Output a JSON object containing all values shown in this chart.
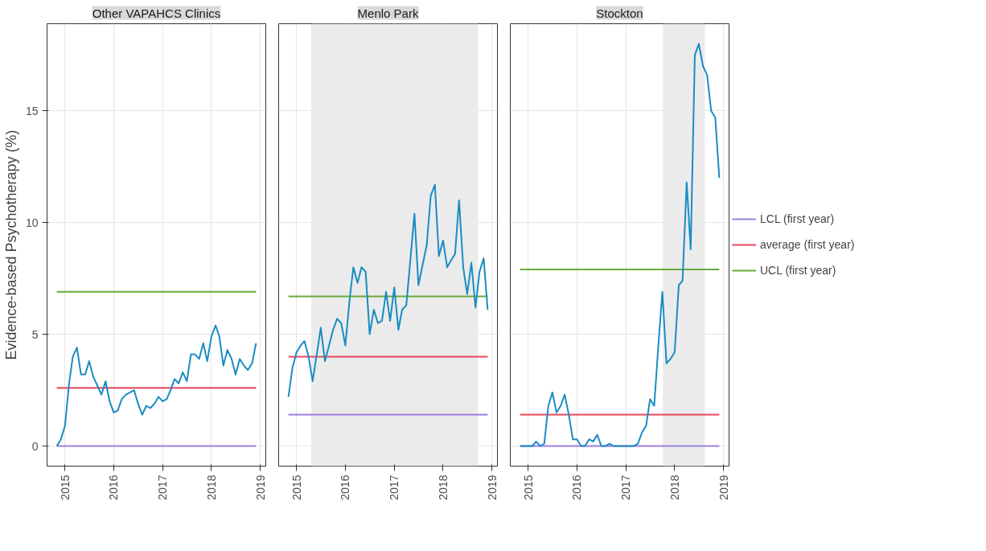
{
  "chart_data": [
    {
      "type": "line",
      "title": "Other VAPAHCS Clinics",
      "ylabel": "Evidence-based Psychotherapy (%)",
      "xlim": [
        "2014-08-20",
        "2019-02-12"
      ],
      "ylim": [
        -0.9,
        18.9
      ],
      "xticks": [
        {
          "value": "2015-01-01",
          "label": "2015"
        },
        {
          "value": "2016-01-01",
          "label": "2016"
        },
        {
          "value": "2017-01-01",
          "label": "2017"
        },
        {
          "value": "2018-01-01",
          "label": "2018"
        },
        {
          "value": "2019-01-01",
          "label": "2019"
        }
      ],
      "yticks": [
        0,
        5,
        10,
        15
      ],
      "grid": true,
      "x": [
        "2014-11",
        "2014-12",
        "2015-01",
        "2015-02",
        "2015-03",
        "2015-04",
        "2015-05",
        "2015-06",
        "2015-07",
        "2015-08",
        "2015-09",
        "2015-10",
        "2015-11",
        "2015-12",
        "2016-01",
        "2016-02",
        "2016-03",
        "2016-04",
        "2016-05",
        "2016-06",
        "2016-07",
        "2016-08",
        "2016-09",
        "2016-10",
        "2016-11",
        "2016-12",
        "2017-01",
        "2017-02",
        "2017-03",
        "2017-04",
        "2017-05",
        "2017-06",
        "2017-07",
        "2017-08",
        "2017-09",
        "2017-10",
        "2017-11",
        "2017-12",
        "2018-01",
        "2018-02",
        "2018-03",
        "2018-04",
        "2018-05",
        "2018-06",
        "2018-07",
        "2018-08",
        "2018-09",
        "2018-10",
        "2018-11",
        "2018-12"
      ],
      "series": [
        {
          "color": "#1a8cc2",
          "values": [
            0,
            0.3,
            0.9,
            2.8,
            4.0,
            4.4,
            3.2,
            3.2,
            3.8,
            3.1,
            2.7,
            2.3,
            2.9,
            2.0,
            1.5,
            1.6,
            2.1,
            2.3,
            2.4,
            2.5,
            1.9,
            1.4,
            1.8,
            1.7,
            1.9,
            2.2,
            2.0,
            2.1,
            2.5,
            3.0,
            2.8,
            3.3,
            2.9,
            4.1,
            4.1,
            3.9,
            4.6,
            3.8,
            4.9,
            5.4,
            4.9,
            3.6,
            4.3,
            3.9,
            3.2,
            3.9,
            3.6,
            3.4,
            3.7,
            4.6
          ]
        },
        {
          "type": "line",
          "color": "#9b7fe0",
          "x": [
            "2014-11",
            "2018-12"
          ],
          "values": [
            0,
            0
          ]
        },
        {
          "type": "line",
          "color": "#e8475a",
          "x": [
            "2014-11",
            "2018-12"
          ],
          "values": [
            2.6,
            2.6
          ]
        },
        {
          "type": "line",
          "color": "#6aaa3a",
          "x": [
            "2014-11",
            "2018-12"
          ],
          "values": [
            6.9,
            6.9
          ]
        }
      ]
    },
    {
      "type": "line",
      "title": "Menlo Park",
      "xlim": [
        "2014-08-20",
        "2019-02-12"
      ],
      "ylim": [
        -0.9,
        18.9
      ],
      "xticks": [
        {
          "value": "2015-01-01",
          "label": "2015"
        },
        {
          "value": "2016-01-01",
          "label": "2016"
        },
        {
          "value": "2017-01-01",
          "label": "2017"
        },
        {
          "value": "2018-01-01",
          "label": "2018"
        },
        {
          "value": "2019-01-01",
          "label": "2019"
        }
      ],
      "yticks": [
        0,
        5,
        10,
        15
      ],
      "grid": true,
      "tick_labels": "x",
      "bands": [
        {
          "axis": "x",
          "from": "2015-04-20",
          "to": "2018-09-20",
          "color": "#ebebeb"
        }
      ],
      "x": [
        "2014-11",
        "2014-12",
        "2015-01",
        "2015-02",
        "2015-03",
        "2015-04",
        "2015-05",
        "2015-06",
        "2015-07",
        "2015-08",
        "2015-09",
        "2015-10",
        "2015-11",
        "2015-12",
        "2016-01",
        "2016-02",
        "2016-03",
        "2016-04",
        "2016-05",
        "2016-06",
        "2016-07",
        "2016-08",
        "2016-09",
        "2016-10",
        "2016-11",
        "2016-12",
        "2017-01",
        "2017-02",
        "2017-03",
        "2017-04",
        "2017-05",
        "2017-06",
        "2017-07",
        "2017-08",
        "2017-09",
        "2017-10",
        "2017-11",
        "2017-12",
        "2018-01",
        "2018-02",
        "2018-03",
        "2018-04",
        "2018-05",
        "2018-06",
        "2018-07",
        "2018-08",
        "2018-09",
        "2018-10",
        "2018-11",
        "2018-12"
      ],
      "series": [
        {
          "color": "#1a8cc2",
          "values": [
            2.2,
            3.5,
            4.2,
            4.5,
            4.7,
            4.0,
            2.9,
            4.1,
            5.3,
            3.8,
            4.5,
            5.2,
            5.7,
            5.5,
            4.5,
            6.5,
            8.0,
            7.3,
            8.0,
            7.8,
            5.0,
            6.1,
            5.5,
            5.6,
            6.9,
            5.6,
            7.1,
            5.2,
            6.1,
            6.3,
            8.3,
            10.4,
            7.2,
            8.1,
            9.0,
            11.2,
            11.7,
            8.5,
            9.2,
            8.0,
            8.3,
            8.6,
            11.0,
            8.0,
            6.8,
            8.2,
            6.2,
            7.8,
            8.4,
            6.1
          ]
        },
        {
          "type": "line",
          "color": "#9b7fe0",
          "x": [
            "2014-11",
            "2018-12"
          ],
          "values": [
            1.4,
            1.4
          ]
        },
        {
          "type": "line",
          "color": "#e8475a",
          "x": [
            "2014-11",
            "2018-12"
          ],
          "values": [
            4.0,
            4.0
          ]
        },
        {
          "type": "line",
          "color": "#6aaa3a",
          "x": [
            "2014-11",
            "2018-12"
          ],
          "values": [
            6.7,
            6.7
          ]
        }
      ]
    },
    {
      "type": "line",
      "title": "Stockton",
      "xlim": [
        "2014-08-20",
        "2019-02-12"
      ],
      "ylim": [
        -0.9,
        18.9
      ],
      "xticks": [
        {
          "value": "2015-01-01",
          "label": "2015"
        },
        {
          "value": "2016-01-01",
          "label": "2016"
        },
        {
          "value": "2017-01-01",
          "label": "2017"
        },
        {
          "value": "2018-01-01",
          "label": "2018"
        },
        {
          "value": "2019-01-01",
          "label": "2019"
        }
      ],
      "yticks": [
        0,
        5,
        10,
        15
      ],
      "grid": true,
      "tick_labels": "x",
      "legend": "right",
      "bands": [
        {
          "axis": "x",
          "from": "2017-10-05",
          "to": "2018-08-15",
          "color": "#ebebeb"
        }
      ],
      "x": [
        "2014-11",
        "2014-12",
        "2015-01",
        "2015-02",
        "2015-03",
        "2015-04",
        "2015-05",
        "2015-06",
        "2015-07",
        "2015-08",
        "2015-09",
        "2015-10",
        "2015-11",
        "2015-12",
        "2016-01",
        "2016-02",
        "2016-03",
        "2016-04",
        "2016-05",
        "2016-06",
        "2016-07",
        "2016-08",
        "2016-09",
        "2016-10",
        "2016-11",
        "2016-12",
        "2017-01",
        "2017-02",
        "2017-03",
        "2017-04",
        "2017-05",
        "2017-06",
        "2017-07",
        "2017-08",
        "2017-09",
        "2017-10",
        "2017-11",
        "2017-12",
        "2018-01",
        "2018-02",
        "2018-03",
        "2018-04",
        "2018-05",
        "2018-06",
        "2018-07",
        "2018-08",
        "2018-09",
        "2018-10",
        "2018-11",
        "2018-12"
      ],
      "series": [
        {
          "color": "#1a8cc2",
          "values": [
            0,
            0,
            0,
            0,
            0.2,
            0,
            0.1,
            1.8,
            2.4,
            1.5,
            1.8,
            2.3,
            1.4,
            0.3,
            0.3,
            0,
            0,
            0.3,
            0.2,
            0.5,
            0,
            0,
            0.1,
            0,
            0,
            0,
            0,
            0,
            0,
            0.1,
            0.6,
            0.9,
            2.1,
            1.8,
            4.5,
            6.9,
            3.7,
            3.9,
            4.2,
            7.2,
            7.4,
            11.8,
            8.8,
            17.5,
            18.0,
            17.0,
            16.6,
            15.0,
            14.7,
            12.0
          ]
        },
        {
          "type": "line",
          "name": "LCL (first year)",
          "color": "#9b7fe0",
          "x": [
            "2014-11",
            "2018-12"
          ],
          "values": [
            0,
            0
          ]
        },
        {
          "type": "line",
          "name": "average (first year)",
          "color": "#e8475a",
          "x": [
            "2014-11",
            "2018-12"
          ],
          "values": [
            1.4,
            1.4
          ]
        },
        {
          "type": "line",
          "name": "UCL (first year)",
          "color": "#6aaa3a",
          "x": [
            "2014-11",
            "2018-12"
          ],
          "values": [
            7.9,
            7.9
          ]
        }
      ]
    }
  ]
}
